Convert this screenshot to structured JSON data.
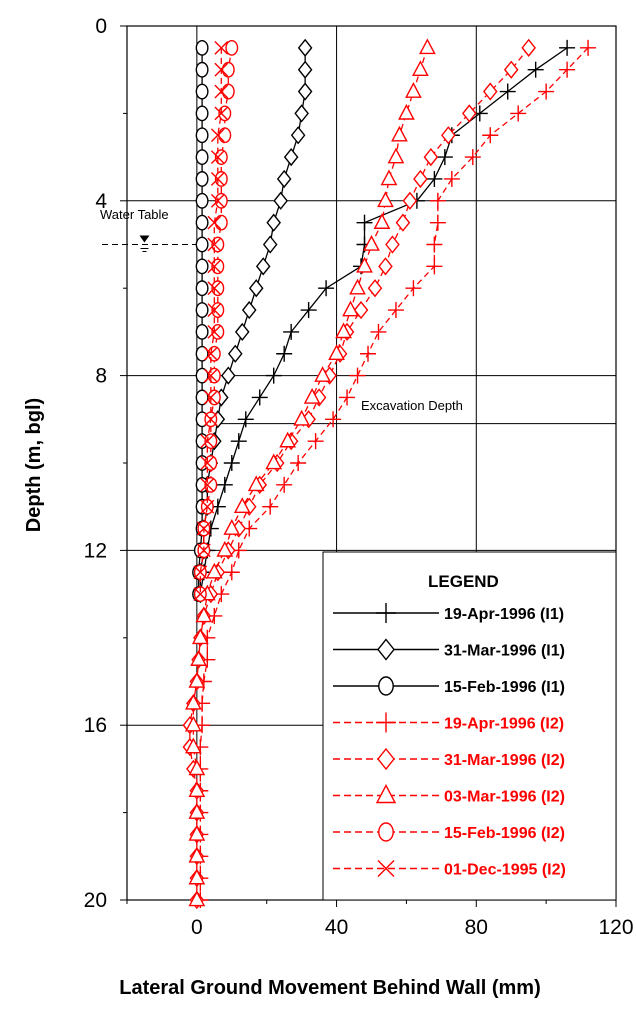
{
  "chart_data": {
    "type": "line",
    "xlabel": "Lateral Ground Movement Behind Wall (mm)",
    "ylabel": "Depth (m, bgl)",
    "xlim": [
      -20,
      120
    ],
    "ylim": [
      0,
      20
    ],
    "y_inverted": true,
    "xticks": [
      0,
      40,
      80,
      120
    ],
    "yticks": [
      0,
      4,
      8,
      12,
      16,
      20
    ],
    "grid": true,
    "legend_title": "LEGEND",
    "legend_position": "bottom-right",
    "annotations": {
      "water_table": {
        "text": "Water Table",
        "depth": 5
      },
      "excavation": {
        "text": "Excavation Depth",
        "depth": 9.1
      }
    },
    "series": [
      {
        "name": "19-Apr-1996 (I1)",
        "marker": "plus",
        "color": "#000000",
        "dashed": false,
        "depth": [
          0.5,
          1,
          1.5,
          2,
          2.5,
          3,
          3.5,
          4,
          4.5,
          5,
          5.5,
          6,
          6.5,
          7,
          7.5,
          8,
          8.5,
          9,
          9.5,
          10,
          10.5,
          11,
          11.5,
          12,
          12.5,
          13
        ],
        "x": [
          106,
          97,
          89,
          81,
          73,
          71,
          68,
          63,
          48,
          48,
          47,
          37,
          32,
          27,
          25,
          22,
          18,
          14,
          12,
          10,
          8,
          6,
          4,
          3,
          2,
          1
        ]
      },
      {
        "name": "31-Mar-1996 (I1)",
        "marker": "diamond",
        "color": "#000000",
        "dashed": false,
        "depth": [
          0.5,
          1,
          1.5,
          2,
          2.5,
          3,
          3.5,
          4,
          4.5,
          5,
          5.5,
          6,
          6.5,
          7,
          7.5,
          8,
          8.5,
          9,
          9.5,
          10,
          10.5,
          11,
          11.5,
          12,
          12.5,
          13
        ],
        "x": [
          31,
          31,
          31,
          30,
          29,
          27,
          25,
          24,
          22,
          21,
          19,
          17,
          15,
          13,
          11,
          9,
          7,
          6,
          5,
          4,
          3,
          3,
          2,
          2,
          1,
          1
        ]
      },
      {
        "name": "15-Feb-1996 (I1)",
        "marker": "circle",
        "color": "#000000",
        "dashed": false,
        "depth": [
          0.5,
          1,
          1.5,
          2,
          2.5,
          3,
          3.5,
          4,
          4.5,
          5,
          5.5,
          6,
          6.5,
          7,
          7.5,
          8,
          8.5,
          9,
          9.5,
          10,
          10.5,
          11,
          11.5,
          12,
          12.5,
          13
        ],
        "x": [
          1.5,
          1.5,
          1.5,
          1.5,
          1.5,
          1.5,
          1.5,
          1.5,
          1.5,
          1.5,
          1.5,
          1.5,
          1.5,
          1.5,
          1.5,
          1.5,
          1.5,
          1.5,
          1.5,
          1.5,
          1.5,
          1.5,
          1.5,
          1,
          0.5,
          0.5
        ]
      },
      {
        "name": "19-Apr-1996 (I2)",
        "marker": "plus",
        "color": "#ff0000",
        "dashed": true,
        "depth": [
          0.5,
          1,
          1.5,
          2,
          2.5,
          3,
          3.5,
          4,
          4.5,
          5,
          5.5,
          6,
          6.5,
          7,
          7.5,
          8,
          8.5,
          9,
          9.5,
          10,
          10.5,
          11,
          11.5,
          12,
          12.5,
          13,
          13.5,
          14,
          14.5,
          15,
          15.5,
          16,
          16.5,
          17,
          17.5,
          18,
          18.5,
          19,
          19.5,
          20
        ],
        "x": [
          112,
          106,
          100,
          92,
          84,
          79,
          73,
          69,
          69,
          68,
          68,
          62,
          57,
          52,
          49,
          46,
          43,
          39,
          34,
          29,
          25,
          21,
          15,
          12,
          10,
          7,
          5,
          3,
          3,
          2,
          1.5,
          1.5,
          1,
          1,
          1,
          1,
          1,
          1,
          1,
          1
        ]
      },
      {
        "name": "31-Mar-1996 (I2)",
        "marker": "diamond",
        "color": "#ff0000",
        "dashed": true,
        "depth": [
          0.5,
          1,
          1.5,
          2,
          2.5,
          3,
          3.5,
          4,
          4.5,
          5,
          5.5,
          6,
          6.5,
          7,
          7.5,
          8,
          8.5,
          9,
          9.5,
          10,
          10.5,
          11,
          11.5,
          12,
          12.5,
          13,
          13.5,
          14,
          14.5,
          15,
          15.5,
          16,
          16.5,
          17,
          17.5,
          18,
          18.5,
          19,
          19.5,
          20
        ],
        "x": [
          95,
          90,
          84,
          78,
          72,
          67,
          64,
          61,
          59,
          56,
          54,
          51,
          47,
          43,
          41,
          38,
          35,
          32,
          27,
          23,
          18,
          15,
          12,
          9,
          6,
          4,
          2,
          1,
          0.5,
          0,
          -1,
          -2,
          -2,
          -1,
          0,
          0,
          0,
          0,
          0,
          0
        ]
      },
      {
        "name": "03-Mar-1996 (I2)",
        "marker": "triangle",
        "color": "#ff0000",
        "dashed": true,
        "depth": [
          0.5,
          1,
          1.5,
          2,
          2.5,
          3,
          3.5,
          4,
          4.5,
          5,
          5.5,
          6,
          6.5,
          7,
          7.5,
          8,
          8.5,
          9,
          9.5,
          10,
          10.5,
          11,
          11.5,
          12,
          12.5,
          13,
          13.5,
          14,
          14.5,
          15,
          15.5,
          16,
          16.5,
          17,
          17.5,
          18,
          18.5,
          19,
          19.5,
          20
        ],
        "x": [
          66,
          64,
          62,
          60,
          58,
          57,
          55,
          54,
          53,
          50,
          48,
          46,
          44,
          42,
          40,
          36,
          33,
          30,
          26,
          22,
          17,
          13,
          10,
          8,
          5,
          3,
          2,
          1,
          0.5,
          0,
          -1,
          -1,
          -1,
          0,
          0,
          0,
          0,
          0,
          0,
          0
        ]
      },
      {
        "name": "15-Feb-1996 (I2)",
        "marker": "circle",
        "color": "#ff0000",
        "dashed": true,
        "depth": [
          0.5,
          1,
          1.5,
          2,
          2.5,
          3,
          3.5,
          4,
          4.5,
          5,
          5.5,
          6,
          6.5,
          7,
          7.5,
          8,
          8.5,
          9,
          9.5,
          10,
          10.5,
          11,
          11.5,
          12,
          12.5,
          13
        ],
        "x": [
          10,
          9,
          9,
          8,
          8,
          7,
          7,
          7,
          7,
          6,
          6,
          6,
          6,
          6,
          5,
          5,
          5,
          4,
          4,
          4,
          4,
          3,
          2,
          2,
          1,
          1
        ]
      },
      {
        "name": "01-Dec-1995 (I2)",
        "marker": "cross",
        "color": "#ff0000",
        "dashed": true,
        "depth": [
          0.5,
          1,
          1.5,
          2,
          2.5,
          3,
          3.5,
          4,
          4.5,
          5,
          5.5,
          6,
          6.5,
          7,
          7.5,
          8,
          8.5,
          9,
          9.5,
          10,
          10.5,
          11,
          11.5,
          12,
          12.5,
          13
        ],
        "x": [
          7,
          7,
          7,
          7,
          6,
          6,
          6,
          6,
          5,
          5,
          5,
          5,
          5,
          5,
          4,
          4,
          4,
          4,
          3,
          3,
          3,
          3,
          2,
          2,
          1,
          1
        ]
      }
    ]
  }
}
